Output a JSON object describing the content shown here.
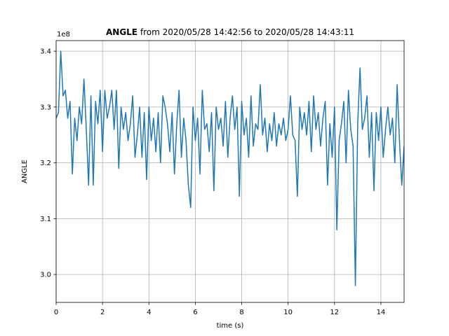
{
  "chart_data": {
    "type": "line",
    "title_prefix": "ANGLE",
    "title": "from 2020/05/28 14:42:56 to 2020/05/28 14:43:11",
    "x_label": "time (s)",
    "y_label": "ANGLE",
    "offset_label": "1e8",
    "xlim": [
      0,
      15
    ],
    "ylim": [
      2.95,
      3.419
    ],
    "xticks": [
      0,
      2,
      4,
      6,
      8,
      10,
      12,
      14
    ],
    "yticks": [
      {
        "value": 3,
        "label": "3.0"
      },
      3.1,
      3.2,
      3.3,
      3.4
    ],
    "grid": true,
    "x": [
      0,
      0.1,
      0.2,
      0.3,
      0.4,
      0.5,
      0.6,
      0.7,
      0.8,
      0.9,
      1,
      1.1,
      1.2,
      1.3,
      1.4,
      1.5,
      1.6,
      1.7,
      1.8,
      1.9,
      2,
      2.1,
      2.2,
      2.3,
      2.4,
      2.5,
      2.6,
      2.7,
      2.8,
      2.9,
      3,
      3.1,
      3.2,
      3.3,
      3.4,
      3.5,
      3.6,
      3.7,
      3.8,
      3.9,
      4,
      4.1,
      4.2,
      4.3,
      4.4,
      4.5,
      4.6,
      4.7,
      4.8,
      4.9,
      5,
      5.1,
      5.2,
      5.3,
      5.4,
      5.5,
      5.6,
      5.7,
      5.8,
      5.9,
      6,
      6.1,
      6.2,
      6.3,
      6.4,
      6.5,
      6.6,
      6.7,
      6.8,
      6.9,
      7,
      7.1,
      7.2,
      7.3,
      7.4,
      7.5,
      7.6,
      7.7,
      7.8,
      7.9,
      8,
      8.1,
      8.2,
      8.3,
      8.4,
      8.5,
      8.6,
      8.7,
      8.8,
      8.9,
      9,
      9.1,
      9.2,
      9.3,
      9.4,
      9.5,
      9.6,
      9.7,
      9.8,
      9.9,
      10,
      10.1,
      10.2,
      10.3,
      10.4,
      10.5,
      10.6,
      10.7,
      10.8,
      10.9,
      11,
      11.1,
      11.2,
      11.3,
      11.4,
      11.5,
      11.6,
      11.7,
      11.8,
      11.9,
      12,
      12.1,
      12.2,
      12.3,
      12.4,
      12.5,
      12.6,
      12.7,
      12.8,
      12.9,
      13,
      13.1,
      13.2,
      13.3,
      13.4,
      13.5,
      13.6,
      13.7,
      13.8,
      13.9,
      14,
      14.1,
      14.2,
      14.3,
      14.4,
      14.5,
      14.6,
      14.7,
      14.8,
      14.9,
      15
    ],
    "series": [
      {
        "name": "ANGLE",
        "color": "#1f77b4",
        "values": [
          3.28,
          3.29,
          3.4,
          3.32,
          3.33,
          3.28,
          3.31,
          3.18,
          3.28,
          3.24,
          3.3,
          3.27,
          3.35,
          3.26,
          3.16,
          3.32,
          3.16,
          3.31,
          3.27,
          3.33,
          3.22,
          3.33,
          3.28,
          3.3,
          3.33,
          3.26,
          3.33,
          3.19,
          3.3,
          3.26,
          3.29,
          3.24,
          3.27,
          3.32,
          3.21,
          3.25,
          3.3,
          3.21,
          3.29,
          3.17,
          3.3,
          3.24,
          3.28,
          3.22,
          3.29,
          3.2,
          3.32,
          3.3,
          3.27,
          3.22,
          3.29,
          3.18,
          3.27,
          3.33,
          3.21,
          3.28,
          3.24,
          3.16,
          3.12,
          3.3,
          3.24,
          3.28,
          3.18,
          3.33,
          3.26,
          3.27,
          3.22,
          3.29,
          3.15,
          3.3,
          3.26,
          3.28,
          3.23,
          3.31,
          3.21,
          3.28,
          3.32,
          3.26,
          3.3,
          3.14,
          3.31,
          3.25,
          3.28,
          3.21,
          3.32,
          3.23,
          3.27,
          3.26,
          3.34,
          3.25,
          3.28,
          3.22,
          3.27,
          3.24,
          3.29,
          3.23,
          3.27,
          3.25,
          3.28,
          3.24,
          3.26,
          3.32,
          3.25,
          3.24,
          3.14,
          3.3,
          3.26,
          3.29,
          3.25,
          3.31,
          3.22,
          3.32,
          3.26,
          3.29,
          3.23,
          3.28,
          3.31,
          3.16,
          3.27,
          3.21,
          3.3,
          3.08,
          3.24,
          3.27,
          3.31,
          3.2,
          3.33,
          3.26,
          3.23,
          2.98,
          3.27,
          3.37,
          3.26,
          3.28,
          3.32,
          3.21,
          3.29,
          3.15,
          3.29,
          3.24,
          3.3,
          3.21,
          3.26,
          3.3,
          3.25,
          3.28,
          3.2,
          3.34,
          3.24,
          3.16,
          3.23
        ]
      }
    ]
  }
}
